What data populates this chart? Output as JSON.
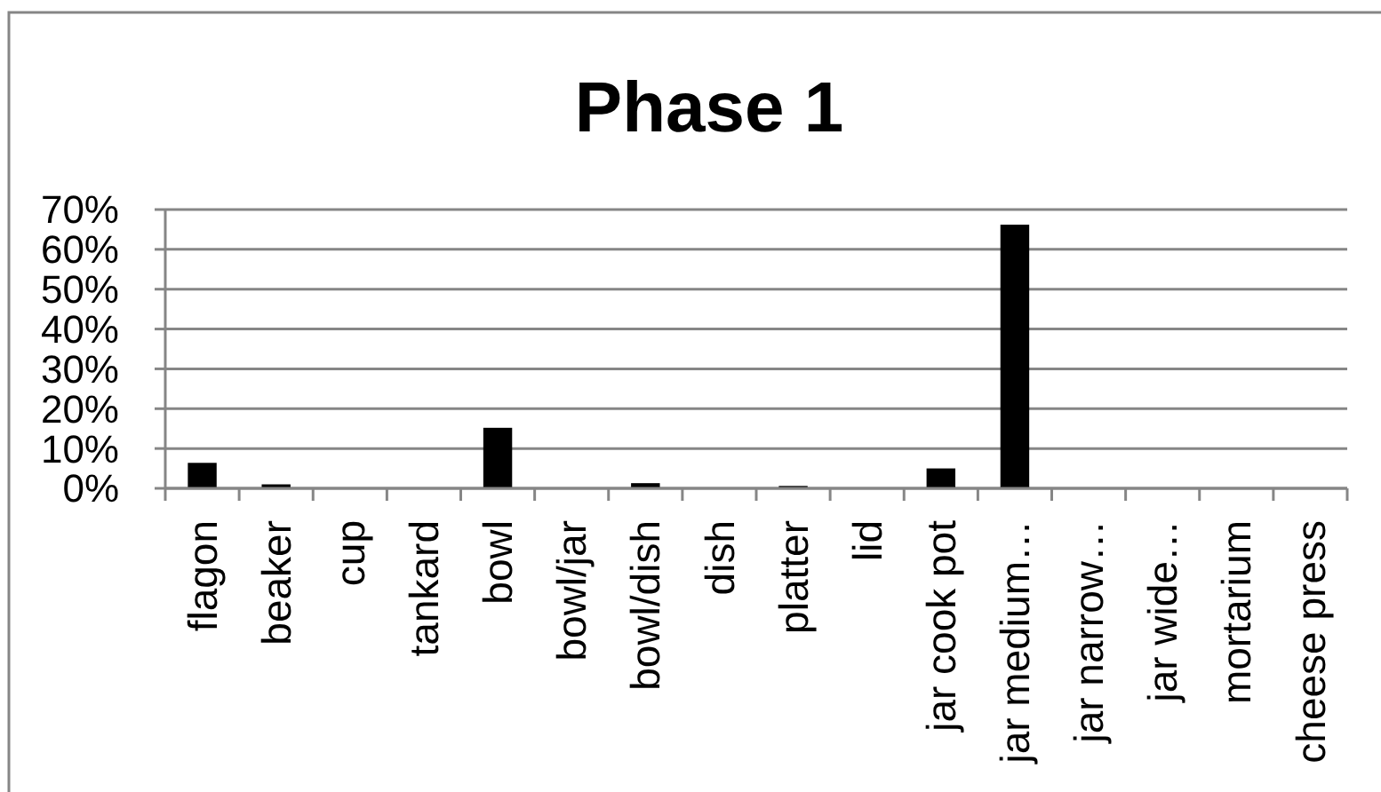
{
  "chart_data": {
    "type": "bar",
    "title": "Phase 1",
    "categories": [
      "flagon",
      "beaker",
      "cup",
      "tankard",
      "bowl",
      "bowl/jar",
      "bowl/dish",
      "dish",
      "platter",
      "lid",
      "jar cook pot",
      "jar medium…",
      "jar narrow…",
      "jar wide…",
      "mortarium",
      "cheese press"
    ],
    "values": [
      6.4,
      1,
      0,
      0,
      15.2,
      0,
      1.3,
      0,
      0.6,
      0,
      5,
      66.2,
      0,
      0,
      0,
      0
    ],
    "color": "#000000",
    "ylim": [
      0,
      70
    ],
    "yticks": [
      {
        "value": 0,
        "label": "0%"
      },
      {
        "value": 10,
        "label": "10%"
      },
      {
        "value": 20,
        "label": "20%"
      },
      {
        "value": 30,
        "label": "30%"
      },
      {
        "value": 40,
        "label": "40%"
      },
      {
        "value": 50,
        "label": "50%"
      },
      {
        "value": 60,
        "label": "60%"
      },
      {
        "value": 70,
        "label": "70%"
      }
    ],
    "grid": "y"
  }
}
